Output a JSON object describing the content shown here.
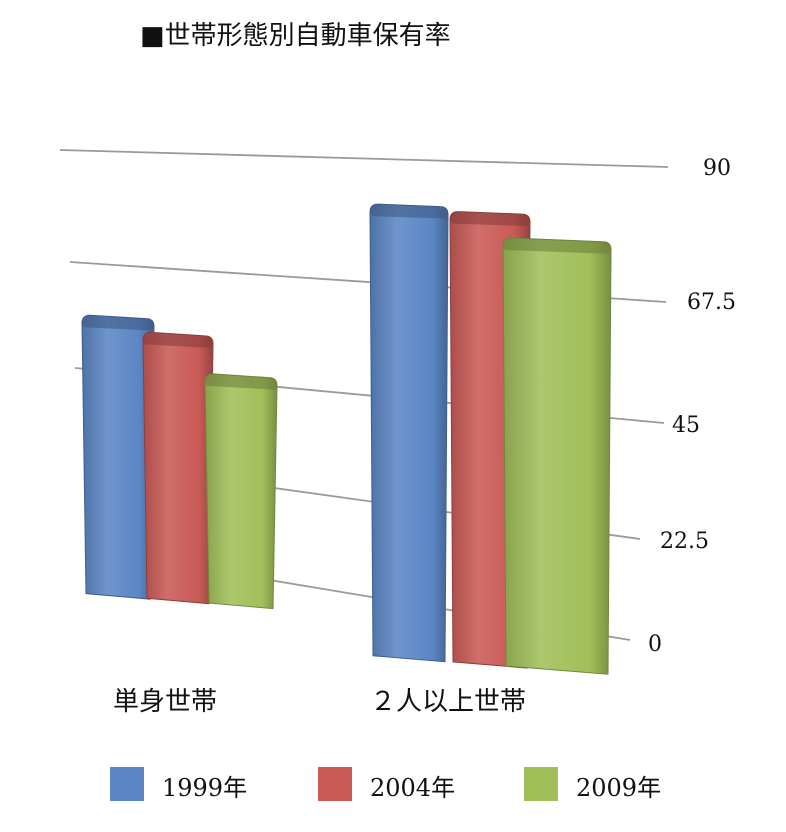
{
  "chart_data": {
    "type": "bar",
    "title": "■世帯形態別自動車保有率",
    "categories": [
      "単身世帯",
      "２人以上世帯"
    ],
    "series": [
      {
        "name": "1999年",
        "values": [
          55,
          85
        ],
        "color": "#5B86C5"
      },
      {
        "name": "2004年",
        "values": [
          52,
          84
        ],
        "color": "#C95A57"
      },
      {
        "name": "2009年",
        "values": [
          44,
          79
        ],
        "color": "#A1BF59"
      }
    ],
    "yticks": [
      "90",
      "67.5",
      "45",
      "22.5",
      "0"
    ],
    "ylim": [
      0,
      90
    ],
    "grid": true,
    "legend_position": "bottom"
  }
}
